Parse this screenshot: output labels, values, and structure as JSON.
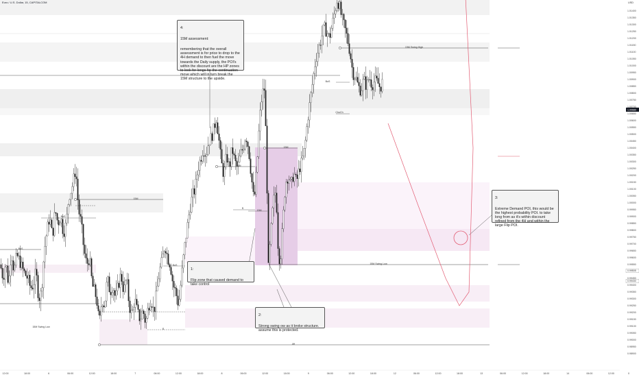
{
  "header": {
    "symbol_title": "Euro / U.S. Dollar, 15, CAPITALCOM"
  },
  "price_axis": {
    "currency": "USD",
    "ticks": [
      "1.01450",
      "1.01400",
      "1.01350",
      "1.01300",
      "1.01250",
      "1.01200",
      "1.01150",
      "1.01100",
      "1.01050",
      "1.01000",
      "1.00950",
      "1.00900",
      "1.00850",
      "1.00800",
      "1.00750",
      "1.00700",
      "1.00650",
      "1.00600",
      "1.00550",
      "1.00500",
      "1.00450",
      "1.00400",
      "1.00350",
      "1.00300",
      "1.00250",
      "1.00200",
      "1.00150",
      "1.00100",
      "1.00050",
      "1.00000",
      "0.99950",
      "0.99900",
      "0.99850",
      "0.99800",
      "0.99750",
      "0.99700",
      "0.99650",
      "0.99600",
      "0.99550",
      "0.99500",
      "0.99450",
      "0.99400",
      "0.99350",
      "0.99300",
      "0.99250",
      "0.99200",
      "0.99150",
      "0.99100",
      "0.99050",
      "0.99000",
      "0.98950",
      "0.98900"
    ],
    "current_price_tag": "1.00680",
    "marker_tags": [
      "0.99505",
      "0.99430"
    ]
  },
  "time_axis": {
    "ticks": [
      "12:00",
      "18:00",
      "6",
      "06:00",
      "12:00",
      "18:00",
      "7",
      "06:00",
      "12:00",
      "18:00",
      "8",
      "06:00",
      "12:00",
      "18:00",
      "9",
      "06:00",
      "12:00",
      "18:00",
      "12",
      "06:00",
      "12:00",
      "18:00",
      "13",
      "06:00",
      "12:00",
      "18:00",
      "14",
      "06:00",
      "12:00"
    ],
    "corner_label": "0"
  },
  "notes": {
    "n4": {
      "num": "4:",
      "title": "15M assessment:",
      "body": "remembering that the overall assessment is for price to drop to the 4H demand to then fuel the move towards the Daily supply, the POI's within the discount are the HP zones to look for longs for the continuation move which will in turn break the 15M structure to the upside."
    },
    "n1": {
      "num": "1:",
      "body": "Flip zone that caused demand to take control"
    },
    "n2": {
      "num": "2:",
      "body": "Strong swing ow as it broke structure. assume this is protected."
    },
    "n3": {
      "num": "3:",
      "body": "Extreme Demand POI, this would be the highest probability POI. to take long from as it's within discount refined from the 4H and within the large Flip POI."
    }
  },
  "chart_labels": {
    "swing_high": "15M Swing High",
    "swing_low_right": "15M Swing Low",
    "swing_low_left": "15M Swing Low",
    "tf_4h": "4H",
    "tf_15m": "15M",
    "bos": "BoS",
    "choch": "ChoCh",
    "dollar": "$"
  },
  "chart_data": {
    "type": "candlestick",
    "symbol": "Euro / U.S. Dollar",
    "timeframe": "15",
    "y_unit": "USD",
    "ylim": [
      0.9888,
      1.0147
    ],
    "swing_high": 1.01105,
    "swing_low": 0.99495,
    "current_price": 1.0068,
    "close_path": [
      {
        "t": 0,
        "price": 0.9955
      },
      {
        "t": 4,
        "price": 0.9945
      },
      {
        "t": 8,
        "price": 0.9957
      },
      {
        "t": 12,
        "price": 0.994
      },
      {
        "t": 16,
        "price": 0.9965
      },
      {
        "t": 20,
        "price": 0.995
      },
      {
        "t": 24,
        "price": 0.9962
      },
      {
        "t": 28,
        "price": 0.9958
      },
      {
        "t": 32,
        "price": 0.9952
      },
      {
        "t": 36,
        "price": 0.9948
      },
      {
        "t": 40,
        "price": 0.9945
      },
      {
        "t": 44,
        "price": 0.9938
      },
      {
        "t": 48,
        "price": 0.994
      },
      {
        "t": 52,
        "price": 0.995
      },
      {
        "t": 56,
        "price": 0.993
      },
      {
        "t": 60,
        "price": 0.9935
      },
      {
        "t": 64,
        "price": 0.9965
      },
      {
        "t": 68,
        "price": 0.998
      },
      {
        "t": 72,
        "price": 0.999
      },
      {
        "t": 76,
        "price": 0.9975
      },
      {
        "t": 80,
        "price": 0.9995
      },
      {
        "t": 84,
        "price": 0.9985
      },
      {
        "t": 88,
        "price": 0.999
      },
      {
        "t": 92,
        "price": 0.9978
      },
      {
        "t": 96,
        "price": 0.9985
      },
      {
        "t": 100,
        "price": 1.0005
      },
      {
        "t": 104,
        "price": 1.001
      },
      {
        "t": 108,
        "price": 1.002
      },
      {
        "t": 110,
        "price": 1.0025
      },
      {
        "t": 114,
        "price": 0.9995
      },
      {
        "t": 118,
        "price": 0.9985
      },
      {
        "t": 122,
        "price": 0.9965
      },
      {
        "t": 126,
        "price": 0.9955
      },
      {
        "t": 130,
        "price": 0.996
      },
      {
        "t": 134,
        "price": 0.994
      },
      {
        "t": 138,
        "price": 0.9935
      },
      {
        "t": 142,
        "price": 0.9925
      },
      {
        "t": 144,
        "price": 0.991
      },
      {
        "t": 148,
        "price": 0.993
      },
      {
        "t": 152,
        "price": 0.9925
      },
      {
        "t": 156,
        "price": 0.9945
      },
      {
        "t": 160,
        "price": 0.9935
      },
      {
        "t": 164,
        "price": 0.994
      },
      {
        "t": 168,
        "price": 0.993
      },
      {
        "t": 172,
        "price": 0.994
      },
      {
        "t": 176,
        "price": 0.9948
      },
      {
        "t": 180,
        "price": 0.9935
      },
      {
        "t": 184,
        "price": 0.9945
      },
      {
        "t": 188,
        "price": 0.9925
      },
      {
        "t": 192,
        "price": 0.9918
      },
      {
        "t": 196,
        "price": 0.993
      },
      {
        "t": 200,
        "price": 0.992
      },
      {
        "t": 204,
        "price": 0.9915
      },
      {
        "t": 208,
        "price": 0.9922
      },
      {
        "t": 212,
        "price": 0.9912
      },
      {
        "t": 216,
        "price": 0.9925
      },
      {
        "t": 220,
        "price": 0.993
      },
      {
        "t": 224,
        "price": 0.992
      },
      {
        "t": 228,
        "price": 0.9935
      },
      {
        "t": 232,
        "price": 0.995
      },
      {
        "t": 236,
        "price": 0.9958
      },
      {
        "t": 240,
        "price": 0.997
      },
      {
        "t": 244,
        "price": 0.996
      },
      {
        "t": 248,
        "price": 0.9955
      },
      {
        "t": 252,
        "price": 0.994
      },
      {
        "t": 256,
        "price": 0.9935
      },
      {
        "t": 260,
        "price": 0.9925
      },
      {
        "t": 264,
        "price": 0.9945
      },
      {
        "t": 268,
        "price": 0.9965
      },
      {
        "t": 272,
        "price": 0.998
      },
      {
        "t": 276,
        "price": 0.9995
      },
      {
        "t": 280,
        "price": 1.0005
      },
      {
        "t": 284,
        "price": 1.001
      },
      {
        "t": 288,
        "price": 1.0025
      },
      {
        "t": 292,
        "price": 1.0032
      },
      {
        "t": 296,
        "price": 1.004
      },
      {
        "t": 300,
        "price": 1.0035
      },
      {
        "t": 304,
        "price": 1.0045
      },
      {
        "t": 308,
        "price": 1.0048
      },
      {
        "t": 312,
        "price": 1.0055
      },
      {
        "t": 315,
        "price": 1.0062
      },
      {
        "t": 318,
        "price": 1.005
      },
      {
        "t": 322,
        "price": 1.003
      },
      {
        "t": 326,
        "price": 1.002
      },
      {
        "t": 330,
        "price": 1.0035
      },
      {
        "t": 334,
        "price": 1.0025
      },
      {
        "t": 338,
        "price": 1.004
      },
      {
        "t": 342,
        "price": 1.003
      },
      {
        "t": 346,
        "price": 1.0025
      },
      {
        "t": 350,
        "price": 1.0035
      },
      {
        "t": 354,
        "price": 1.004
      },
      {
        "t": 358,
        "price": 1.005
      },
      {
        "t": 362,
        "price": 1.004
      },
      {
        "t": 366,
        "price": 1.002
      },
      {
        "t": 370,
        "price": 1.0
      },
      {
        "t": 374,
        "price": 1.0025
      },
      {
        "t": 378,
        "price": 1.006
      },
      {
        "t": 382,
        "price": 1.008
      },
      {
        "t": 385,
        "price": 1.0083
      },
      {
        "t": 388,
        "price": 1.004
      },
      {
        "t": 391,
        "price": 0.9952
      },
      {
        "t": 394,
        "price": 0.9975
      },
      {
        "t": 398,
        "price": 1.0
      },
      {
        "t": 402,
        "price": 1.001
      },
      {
        "t": 405,
        "price": 0.997
      },
      {
        "t": 408,
        "price": 0.9955
      },
      {
        "t": 412,
        "price": 0.9985
      },
      {
        "t": 416,
        "price": 1.0015
      },
      {
        "t": 420,
        "price": 1.002
      },
      {
        "t": 424,
        "price": 1.0012
      },
      {
        "t": 428,
        "price": 1.0022
      },
      {
        "t": 432,
        "price": 1.0015
      },
      {
        "t": 436,
        "price": 1.0025
      },
      {
        "t": 440,
        "price": 1.003
      },
      {
        "t": 444,
        "price": 1.004
      },
      {
        "t": 448,
        "price": 1.006
      },
      {
        "t": 452,
        "price": 1.0075
      },
      {
        "t": 456,
        "price": 1.009
      },
      {
        "t": 460,
        "price": 1.0105
      },
      {
        "t": 464,
        "price": 1.0112
      },
      {
        "t": 468,
        "price": 1.012
      },
      {
        "t": 472,
        "price": 1.0128
      },
      {
        "t": 476,
        "price": 1.0125
      },
      {
        "t": 480,
        "price": 1.012
      },
      {
        "t": 484,
        "price": 1.013
      },
      {
        "t": 488,
        "price": 1.014
      },
      {
        "t": 491,
        "price": 1.0148
      },
      {
        "t": 494,
        "price": 1.0145
      },
      {
        "t": 498,
        "price": 1.0135
      },
      {
        "t": 502,
        "price": 1.0128
      },
      {
        "t": 506,
        "price": 1.012
      },
      {
        "t": 510,
        "price": 1.011
      },
      {
        "t": 514,
        "price": 1.0095
      },
      {
        "t": 518,
        "price": 1.0092
      },
      {
        "t": 522,
        "price": 1.0085
      },
      {
        "t": 526,
        "price": 1.0082
      },
      {
        "t": 530,
        "price": 1.009
      },
      {
        "t": 534,
        "price": 1.0085
      },
      {
        "t": 538,
        "price": 1.0092
      },
      {
        "t": 542,
        "price": 1.0086
      },
      {
        "t": 546,
        "price": 1.0089
      },
      {
        "t": 550,
        "price": 1.0088
      },
      {
        "t": 554,
        "price": 1.0084
      },
      {
        "t": 558,
        "price": 1.0089
      }
    ],
    "projection": [
      {
        "t": 566,
        "price": 1.0058
      },
      {
        "t": 610,
        "price": 0.9998
      },
      {
        "t": 650,
        "price": 0.9945
      },
      {
        "t": 670,
        "price": 0.9925
      },
      {
        "t": 684,
        "price": 0.9935
      },
      {
        "t": 690,
        "price": 1.004
      },
      {
        "t": 680,
        "price": 1.014
      },
      {
        "t": 676,
        "price": 1.018
      }
    ],
    "annotations": [
      "4:",
      "1:",
      "2:",
      "3:"
    ]
  }
}
